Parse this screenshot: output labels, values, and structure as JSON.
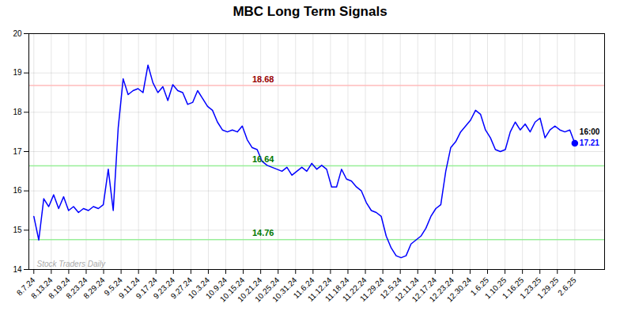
{
  "chart_data": {
    "type": "line",
    "title": "MBC Long Term Signals",
    "color": "#0000ff",
    "grid": true,
    "x": [
      0,
      1,
      2,
      3,
      4,
      5,
      6,
      7,
      8,
      9,
      10,
      11,
      12,
      13,
      14,
      15,
      16,
      17,
      18,
      19,
      20,
      21,
      22,
      23,
      24,
      25,
      26,
      27,
      28,
      29,
      30,
      31,
      32,
      33,
      34,
      35,
      36,
      37,
      38,
      39,
      40,
      41,
      42,
      43,
      44,
      45,
      46,
      47,
      48,
      49,
      50,
      51,
      52,
      53,
      54,
      55,
      56,
      57,
      58,
      59,
      60,
      61,
      62,
      63,
      64,
      65,
      66,
      67,
      68,
      69,
      70,
      71,
      72,
      73,
      74,
      75,
      76,
      77,
      78,
      79,
      80,
      81,
      82,
      83,
      84,
      85,
      86,
      87,
      88,
      89,
      90,
      91,
      92,
      93,
      94,
      95,
      96,
      97,
      98,
      99,
      100,
      101,
      102,
      103,
      104,
      105,
      106,
      107,
      108,
      109
    ],
    "values": [
      15.35,
      14.75,
      15.8,
      15.6,
      15.9,
      15.55,
      15.85,
      15.5,
      15.6,
      15.45,
      15.55,
      15.5,
      15.6,
      15.55,
      15.65,
      16.55,
      15.5,
      17.6,
      18.85,
      18.45,
      18.55,
      18.6,
      18.5,
      19.2,
      18.75,
      18.5,
      18.65,
      18.3,
      18.7,
      18.55,
      18.5,
      18.2,
      18.25,
      18.55,
      18.35,
      18.15,
      18.05,
      17.75,
      17.55,
      17.5,
      17.55,
      17.5,
      17.65,
      17.3,
      17.1,
      17.05,
      16.75,
      16.65,
      16.6,
      16.55,
      16.5,
      16.6,
      16.4,
      16.5,
      16.6,
      16.5,
      16.7,
      16.55,
      16.65,
      16.55,
      16.1,
      16.1,
      16.55,
      16.3,
      16.25,
      16.1,
      16.0,
      15.7,
      15.5,
      15.45,
      15.35,
      14.85,
      14.55,
      14.35,
      14.3,
      14.35,
      14.65,
      14.75,
      14.85,
      15.05,
      15.35,
      15.55,
      15.65,
      16.5,
      17.1,
      17.25,
      17.5,
      17.65,
      17.8,
      18.05,
      17.95,
      17.55,
      17.35,
      17.05,
      17.0,
      17.05,
      17.5,
      17.75,
      17.55,
      17.7,
      17.5,
      17.75,
      17.85,
      17.35,
      17.55,
      17.65,
      17.55,
      17.5,
      17.55,
      17.21
    ],
    "xlim": [
      -1,
      115
    ],
    "xticks": [
      {
        "value": 0,
        "label": "8.7.24"
      },
      {
        "value": 3.516129,
        "label": "8.13.24"
      },
      {
        "value": 7.032258,
        "label": "8.19.24"
      },
      {
        "value": 10.548387,
        "label": "8.23.24"
      },
      {
        "value": 14.064516,
        "label": "8.29.24"
      },
      {
        "value": 17.580645,
        "label": "9.5.24"
      },
      {
        "value": 21.096774,
        "label": "9.11.24"
      },
      {
        "value": 24.612903,
        "label": "9.17.24"
      },
      {
        "value": 28.129032,
        "label": "9.23.24"
      },
      {
        "value": 31.645161,
        "label": "9.27.24"
      },
      {
        "value": 35.16129,
        "label": "10.3.24"
      },
      {
        "value": 38.677419,
        "label": "10.9.24"
      },
      {
        "value": 42.193548,
        "label": "10.15.24"
      },
      {
        "value": 45.709677,
        "label": "10.21.24"
      },
      {
        "value": 49.225806,
        "label": "10.25.24"
      },
      {
        "value": 52.741935,
        "label": "10.31.24"
      },
      {
        "value": 56.258065,
        "label": "11.6.24"
      },
      {
        "value": 59.774194,
        "label": "11.12.24"
      },
      {
        "value": 63.290323,
        "label": "11.18.24"
      },
      {
        "value": 66.806452,
        "label": "11.22.24"
      },
      {
        "value": 70.322581,
        "label": "11.29.24"
      },
      {
        "value": 73.83871,
        "label": "12.5.24"
      },
      {
        "value": 77.354839,
        "label": "12.11.24"
      },
      {
        "value": 80.870968,
        "label": "12.17.24"
      },
      {
        "value": 84.387097,
        "label": "12.23.24"
      },
      {
        "value": 87.903226,
        "label": "12.30.24"
      },
      {
        "value": 91.419355,
        "label": "1.6.25"
      },
      {
        "value": 94.935484,
        "label": "1.10.25"
      },
      {
        "value": 98.451613,
        "label": "1.16.25"
      },
      {
        "value": 101.967742,
        "label": "1.23.25"
      },
      {
        "value": 105.483871,
        "label": "1.29.25"
      },
      {
        "value": 109,
        "label": "2.6.25"
      }
    ],
    "ylim": [
      14,
      20
    ],
    "yticks": [
      14,
      15,
      16,
      17,
      18,
      19,
      20
    ],
    "reference_lines": [
      {
        "value": 18.68,
        "label": "18.68",
        "color": "#ffbbbb",
        "label_color": "#990000"
      },
      {
        "value": 16.64,
        "label": "16.64",
        "color": "#99ee99",
        "label_color": "#007700"
      },
      {
        "value": 14.76,
        "label": "14.76",
        "color": "#99ee99",
        "label_color": "#007700"
      }
    ],
    "last_point": {
      "x": 109,
      "value": 17.21,
      "label": "17.21",
      "color": "#0000ff",
      "time_label": "16:00",
      "time_color": "#000000"
    },
    "watermark": {
      "text": "Stock Traders Daily",
      "color": "#aaaaaa"
    }
  }
}
